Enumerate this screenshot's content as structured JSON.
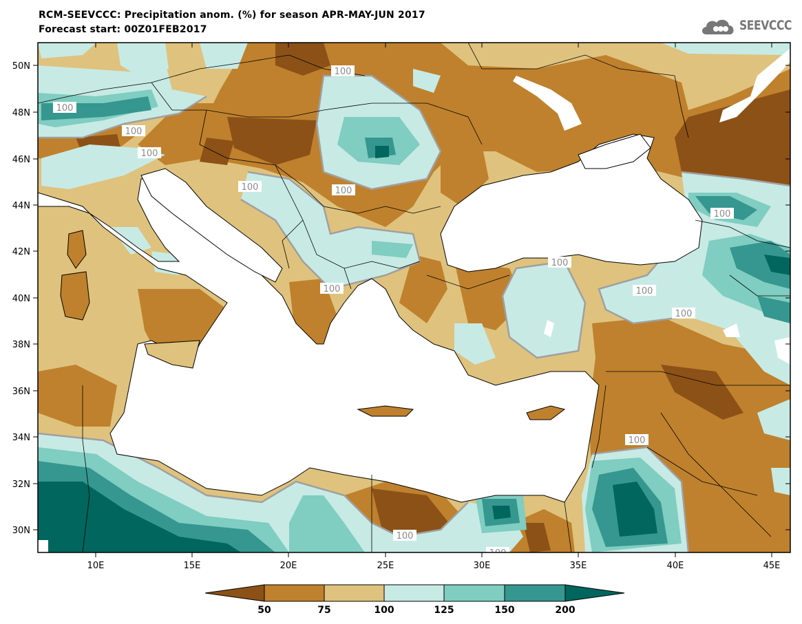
{
  "header": {
    "title_line1": "RCM-SEEVCCC: Precipitation anom. (%) for season APR-MAY-JUN 2017",
    "title_line2": "Forecast start: 00Z01FEB2017",
    "logo_text": "SEEVCCC"
  },
  "map": {
    "lon_range": [
      7,
      46
    ],
    "lat_range": [
      29,
      51
    ],
    "lat_ticks": [
      "50N",
      "48N",
      "46N",
      "44N",
      "42N",
      "40N",
      "38N",
      "36N",
      "34N",
      "32N",
      "30N"
    ],
    "lon_ticks": [
      "10E",
      "15E",
      "20E",
      "25E",
      "30E",
      "35E",
      "40E",
      "45E"
    ],
    "contour_label": "100",
    "colors": {
      "lt50": "#8c5117",
      "c50_75": "#bf812d",
      "c75_100": "#dfc27d",
      "c100_125": "#c7eae5",
      "c125_150": "#80cdc1",
      "c150_200": "#35978f",
      "gt200": "#01665e",
      "sea": "#ffffff",
      "contour": "#a0a0a0"
    }
  },
  "colorbar": {
    "levels": [
      "50",
      "75",
      "100",
      "125",
      "150",
      "200"
    ],
    "colors": [
      "#8c5117",
      "#bf812d",
      "#dfc27d",
      "#c7eae5",
      "#80cdc1",
      "#35978f",
      "#01665e"
    ]
  }
}
